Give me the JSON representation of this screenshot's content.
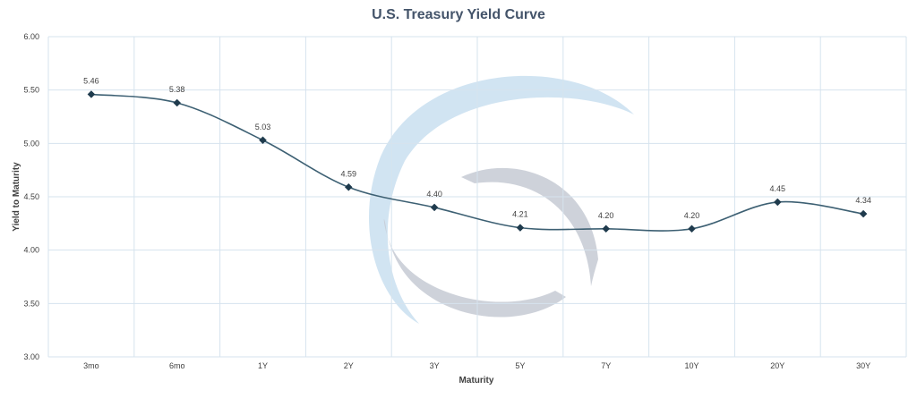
{
  "chart_data": {
    "type": "line",
    "title": "U.S. Treasury Yield Curve",
    "xlabel": "Maturity",
    "ylabel": "Yield to Maturity",
    "categories": [
      "3mo",
      "6mo",
      "1Y",
      "2Y",
      "3Y",
      "5Y",
      "7Y",
      "10Y",
      "20Y",
      "30Y"
    ],
    "series": [
      {
        "values": [
          5.46,
          5.38,
          5.03,
          4.59,
          4.4,
          4.21,
          4.2,
          4.2,
          4.45,
          4.34
        ]
      }
    ],
    "data_labels": [
      "5.46",
      "5.38",
      "5.03",
      "4.59",
      "4.40",
      "4.21",
      "4.20",
      "4.20",
      "4.45",
      "4.34"
    ],
    "ylim": [
      3.0,
      6.0
    ],
    "yticks": [
      "3.00",
      "3.50",
      "4.00",
      "4.50",
      "5.00",
      "5.50",
      "6.00"
    ],
    "grid": true,
    "smooth": true,
    "marker": "diamond",
    "colors": {
      "line": "#3d6073",
      "marker": "#1f3b4d",
      "grid": "#d6e3ee",
      "axis_text": "#404040",
      "title": "#44546a",
      "watermark_light": "#c9dff0",
      "watermark_gray": "#c5cad3"
    }
  }
}
